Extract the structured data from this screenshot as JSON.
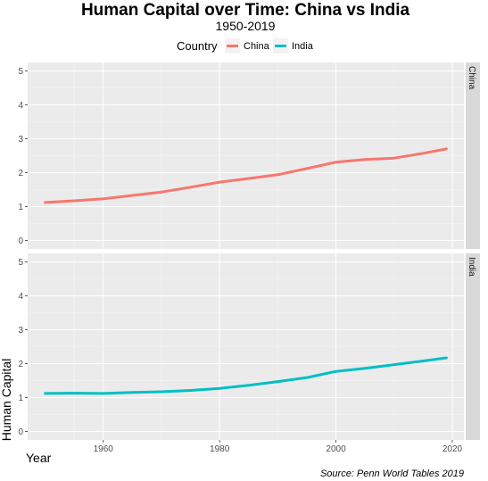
{
  "chart_data": {
    "type": "line",
    "title": "Human Capital over Time: China vs India",
    "subtitle": "1950-2019",
    "legend": {
      "title": "Country",
      "position": "top",
      "entries": [
        "China",
        "India"
      ]
    },
    "xlabel": "Year",
    "ylabel": "Human Capital",
    "xlim": [
      1947,
      2022
    ],
    "ylim": [
      0,
      5
    ],
    "x_ticks": [
      1960,
      1980,
      2000,
      2020
    ],
    "y_ticks": [
      0,
      1,
      2,
      3,
      4,
      5
    ],
    "facets": [
      "China",
      "India"
    ],
    "colors": {
      "China": "#F8766D",
      "India": "#00BFC4"
    },
    "series": [
      {
        "name": "China",
        "x": [
          1950,
          1955,
          1960,
          1965,
          1970,
          1975,
          1980,
          1985,
          1990,
          1995,
          2000,
          2005,
          2010,
          2015,
          2019
        ],
        "values": [
          1.12,
          1.17,
          1.23,
          1.33,
          1.43,
          1.57,
          1.72,
          1.83,
          1.94,
          2.12,
          2.31,
          2.39,
          2.43,
          2.57,
          2.7
        ]
      },
      {
        "name": "India",
        "x": [
          1950,
          1955,
          1960,
          1965,
          1970,
          1975,
          1980,
          1985,
          1990,
          1995,
          2000,
          2005,
          2010,
          2015,
          2019
        ],
        "values": [
          1.12,
          1.13,
          1.12,
          1.15,
          1.17,
          1.21,
          1.27,
          1.36,
          1.47,
          1.59,
          1.77,
          1.86,
          1.97,
          2.08,
          2.17
        ]
      }
    ],
    "grid": true,
    "caption": "Source: Penn World Tables 2019"
  }
}
